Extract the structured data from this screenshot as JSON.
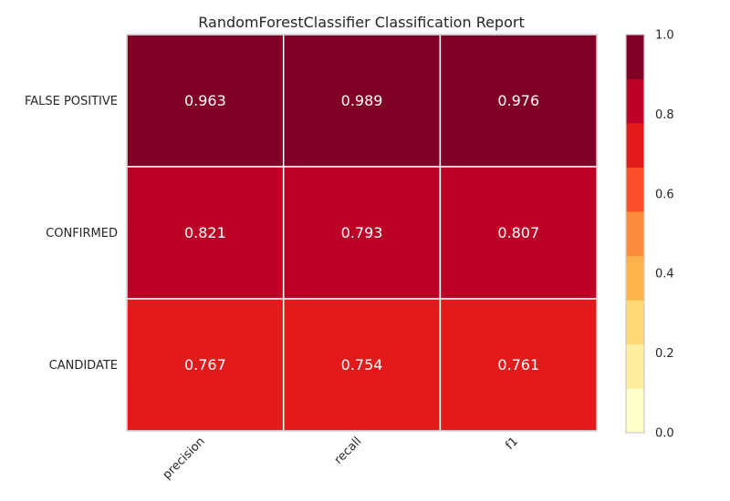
{
  "chart_data": {
    "type": "heatmap",
    "title": "RandomForestClassifier Classification Report",
    "rows": [
      "FALSE POSITIVE",
      "CONFIRMED",
      "CANDIDATE"
    ],
    "columns": [
      "precision",
      "recall",
      "f1"
    ],
    "values": [
      [
        0.963,
        0.989,
        0.976
      ],
      [
        0.821,
        0.793,
        0.807
      ],
      [
        0.767,
        0.754,
        0.761
      ]
    ],
    "value_labels": [
      [
        "0.963",
        "0.989",
        "0.976"
      ],
      [
        "0.821",
        "0.793",
        "0.807"
      ],
      [
        "0.767",
        "0.754",
        "0.761"
      ]
    ],
    "colorbar": {
      "range": [
        0.0,
        1.0
      ],
      "ticks": [
        0.0,
        0.2,
        0.4,
        0.6,
        0.8,
        1.0
      ],
      "tick_labels": [
        "0.0",
        "0.2",
        "0.4",
        "0.6",
        "0.8",
        "1.0"
      ],
      "colors": [
        "#ffffcc",
        "#ffeda0",
        "#fed976",
        "#feb24c",
        "#fd8d3c",
        "#fc4e2a",
        "#e31a1c",
        "#bd0026",
        "#800026"
      ]
    },
    "colormap": "YlOrRd",
    "grid": false
  }
}
